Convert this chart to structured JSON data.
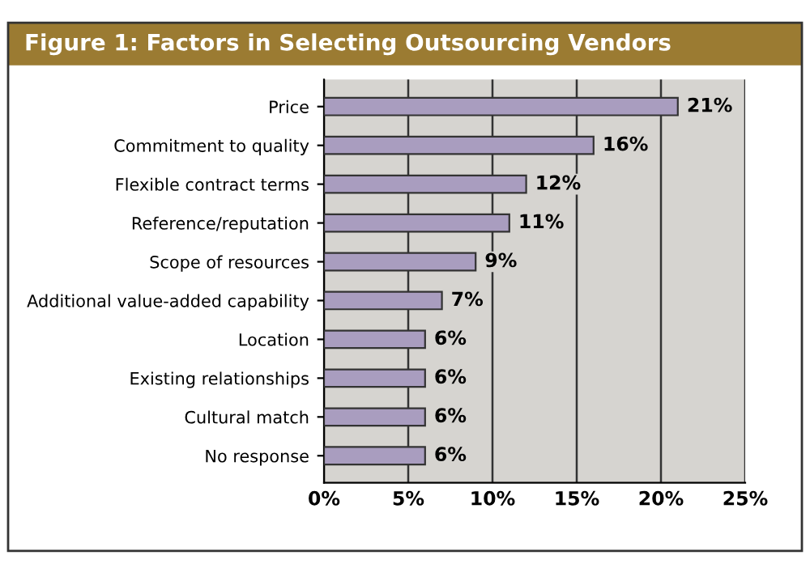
{
  "chart_data": {
    "type": "bar",
    "orientation": "horizontal",
    "title": "Figure 1: Factors in Selecting Outsourcing Vendors",
    "categories": [
      "Price",
      "Commitment to quality",
      "Flexible contract terms",
      "Reference/reputation",
      "Scope of resources",
      "Additional value-added capability",
      "Location",
      "Existing relationships",
      "Cultural match",
      "No response"
    ],
    "values": [
      21,
      16,
      12,
      11,
      9,
      7,
      6,
      6,
      6,
      6
    ],
    "value_labels": [
      "21%",
      "16%",
      "12%",
      "11%",
      "9%",
      "7%",
      "6%",
      "6%",
      "6%",
      "6%"
    ],
    "color": "#a99dbf",
    "xlim": [
      0,
      25
    ],
    "xticks": [
      {
        "value": 0,
        "label": "0%"
      },
      {
        "value": 5,
        "label": "5%"
      },
      {
        "value": 10,
        "label": "10%"
      },
      {
        "value": 15,
        "label": "15%"
      },
      {
        "value": 20,
        "label": "20%"
      },
      {
        "value": 25,
        "label": "25%"
      }
    ],
    "grid": "x",
    "legend": false
  }
}
